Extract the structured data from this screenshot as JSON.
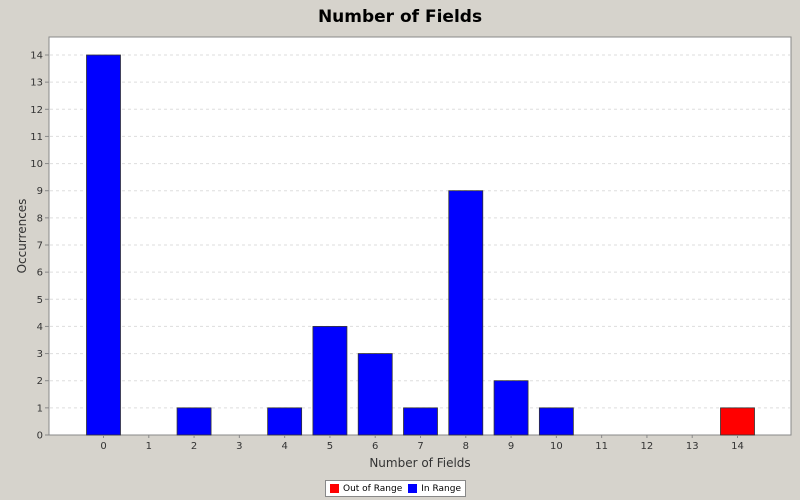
{
  "chart_data": {
    "type": "bar",
    "title": "Number of Fields",
    "xlabel": "Number of Fields",
    "ylabel": "Occurrences",
    "categories": [
      "0",
      "1",
      "2",
      "3",
      "4",
      "5",
      "6",
      "7",
      "8",
      "9",
      "10",
      "11",
      "12",
      "13",
      "14"
    ],
    "series": [
      {
        "name": "Out of Range",
        "color": "#ff0000",
        "values": [
          0,
          0,
          0,
          0,
          0,
          0,
          0,
          0,
          0,
          0,
          0,
          0,
          0,
          0,
          1
        ]
      },
      {
        "name": "In Range",
        "color": "#0000ff",
        "values": [
          14,
          0,
          1,
          0,
          1,
          4,
          3,
          1,
          9,
          2,
          1,
          0,
          0,
          0,
          0
        ]
      }
    ],
    "ylim": [
      0,
      14
    ],
    "yticks": [
      0,
      1,
      2,
      3,
      4,
      5,
      6,
      7,
      8,
      9,
      10,
      11,
      12,
      13,
      14
    ],
    "grid": true,
    "legend_position": "bottom"
  }
}
